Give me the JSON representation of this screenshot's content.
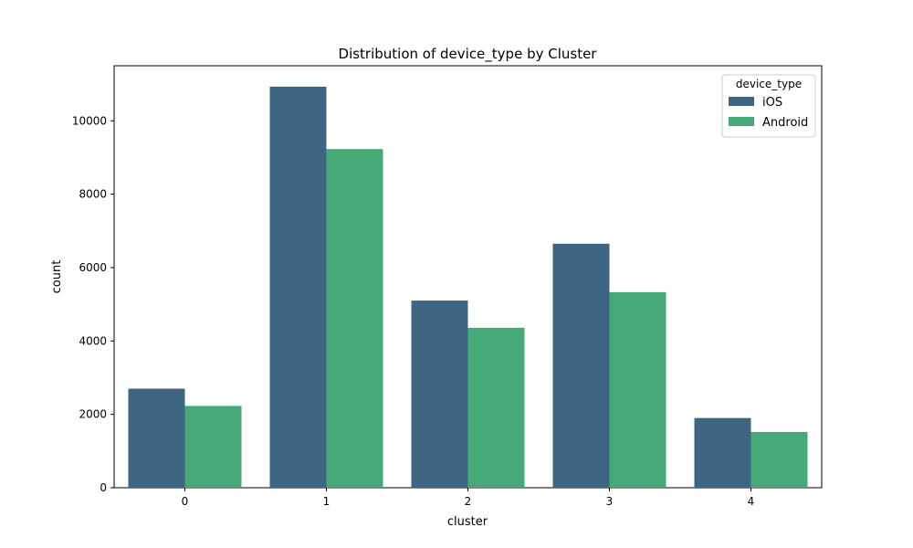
{
  "chart_data": {
    "type": "bar",
    "title": "Distribution of device_type by Cluster",
    "xlabel": "cluster",
    "ylabel": "count",
    "categories": [
      "0",
      "1",
      "2",
      "3",
      "4"
    ],
    "series": [
      {
        "name": "iOS",
        "values": [
          2700,
          10930,
          5100,
          6650,
          1900
        ],
        "color": "#3e6683"
      },
      {
        "name": "Android",
        "values": [
          2230,
          9230,
          4360,
          5330,
          1520
        ],
        "color": "#47a978"
      }
    ],
    "ylim": [
      0,
      11500
    ],
    "yticks": [
      0,
      2000,
      4000,
      6000,
      8000,
      10000
    ],
    "ytick_labels": [
      "0",
      "2000",
      "4000",
      "6000",
      "8000",
      "10000"
    ],
    "grid": false,
    "legend": {
      "title": "device_type",
      "placement": "top-right"
    }
  }
}
